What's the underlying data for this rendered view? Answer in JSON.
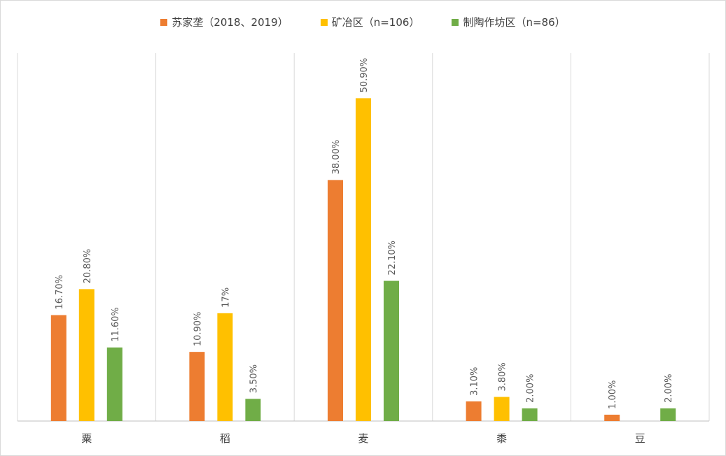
{
  "chart_data": {
    "type": "bar",
    "categories": [
      "粟",
      "稻",
      "麦",
      "黍",
      "豆"
    ],
    "series": [
      {
        "name": "苏家垄（2018、2019）",
        "color": "#ED7D31",
        "values": [
          16.7,
          10.9,
          38.0,
          3.1,
          1.0
        ],
        "labels": [
          "16.70%",
          "10.90%",
          "38.00%",
          "3.10%",
          "1.00%"
        ]
      },
      {
        "name": "矿冶区（n=106）",
        "color": "#FFC000",
        "values": [
          20.8,
          17.0,
          50.9,
          3.8,
          null
        ],
        "labels": [
          "20.80%",
          "17%",
          "50.90%",
          "3.80%",
          null
        ]
      },
      {
        "name": "制陶作坊区（n=86）",
        "color": "#70AD47",
        "values": [
          11.6,
          3.5,
          22.1,
          2.0,
          2.0
        ],
        "labels": [
          "11.60%",
          "3.50%",
          "22.10%",
          "2.00%",
          "2.00%"
        ]
      }
    ],
    "ylim": [
      0,
      58
    ],
    "grid": "vertical-category-separators",
    "legend_position": "top"
  }
}
